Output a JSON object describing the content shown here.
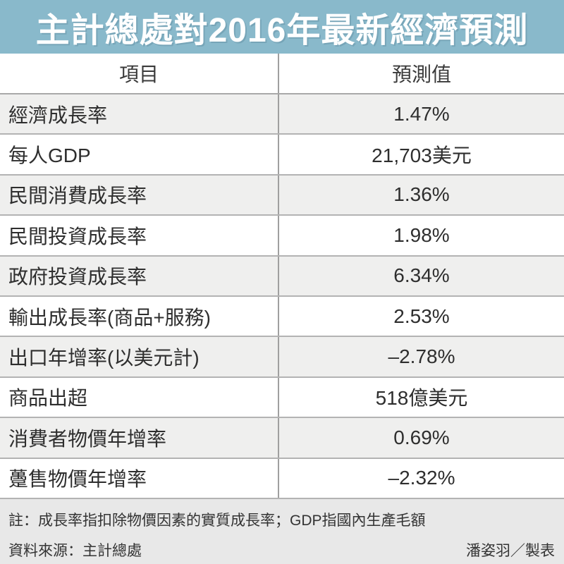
{
  "title": "主計總處對2016年最新經濟預測",
  "colors": {
    "title_bg": "#89b9cb",
    "title_text": "#ffffff",
    "row_alt_bg": "#efefee",
    "row_bg": "#ffffff",
    "footer_bg": "#e8e8e8",
    "grid_line": "#b3b3b3",
    "header_line": "#a9a9a9",
    "divider": "#9f9f9f",
    "text": "#2e2e2e"
  },
  "table": {
    "columns": [
      "項目",
      "預測值"
    ],
    "rows": [
      {
        "item": "經濟成長率",
        "value": "1.47%"
      },
      {
        "item": "每人GDP",
        "value": "21,703美元"
      },
      {
        "item": "民間消費成長率",
        "value": "1.36%"
      },
      {
        "item": "民間投資成長率",
        "value": "1.98%"
      },
      {
        "item": "政府投資成長率",
        "value": "6.34%"
      },
      {
        "item": "輸出成長率(商品+服務)",
        "value": "2.53%"
      },
      {
        "item": "出口年增率(以美元計)",
        "value": "–2.78%"
      },
      {
        "item": "商品出超",
        "value": "518億美元"
      },
      {
        "item": "消費者物價年增率",
        "value": "0.69%"
      },
      {
        "item": "躉售物價年增率",
        "value": "–2.32%"
      }
    ]
  },
  "footer": {
    "note": "註：成長率指扣除物價因素的實質成長率；GDP指國內生產毛額",
    "source": "資料來源：主計總處",
    "credit": "潘姿羽／製表"
  },
  "chart_data": {
    "type": "table",
    "title": "主計總處對2016年最新經濟預測",
    "columns": [
      "項目",
      "預測值"
    ],
    "rows": [
      [
        "經濟成長率",
        "1.47%"
      ],
      [
        "每人GDP",
        "21,703美元"
      ],
      [
        "民間消費成長率",
        "1.36%"
      ],
      [
        "民間投資成長率",
        "1.98%"
      ],
      [
        "政府投資成長率",
        "6.34%"
      ],
      [
        "輸出成長率(商品+服務)",
        "2.53%"
      ],
      [
        "出口年增率(以美元計)",
        "–2.78%"
      ],
      [
        "商品出超",
        "518億美元"
      ],
      [
        "消費者物價年增率",
        "0.69%"
      ],
      [
        "躉售物價年增率",
        "–2.32%"
      ]
    ],
    "notes": "註：成長率指扣除物價因素的實質成長率；GDP指國內生產毛額",
    "source": "主計總處",
    "credit": "潘姿羽／製表"
  }
}
